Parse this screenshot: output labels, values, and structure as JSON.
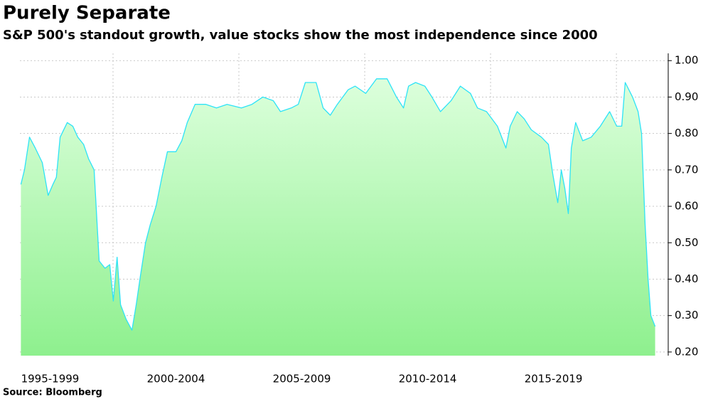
{
  "chart_data": {
    "type": "area",
    "title": "Purely Separate",
    "subtitle": "S&P 500's standout growth, value stocks show the most independence since 2000",
    "source": "Source: Bloomberg",
    "color": "#2de3f7",
    "grid": true,
    "x": [
      1996.34,
      1996.48,
      1996.68,
      1996.91,
      1997.19,
      1997.42,
      1997.61,
      1997.75,
      1997.9,
      1998.18,
      1998.4,
      1998.6,
      1998.83,
      1999.03,
      1999.25,
      1999.45,
      1999.68,
      1999.87,
      2000.01,
      2000.16,
      2000.3,
      2000.52,
      2000.75,
      2000.92,
      2001.09,
      2001.29,
      2001.48,
      2001.71,
      2001.94,
      2002.16,
      2002.5,
      2002.73,
      2002.95,
      2003.26,
      2003.69,
      2004.11,
      2004.53,
      2005.1,
      2005.52,
      2005.95,
      2006.37,
      2006.65,
      2007.08,
      2007.36,
      2007.64,
      2008.07,
      2008.35,
      2008.63,
      2008.91,
      2009.34,
      2009.62,
      2010.04,
      2010.47,
      2010.89,
      2011.26,
      2011.54,
      2011.74,
      2012.02,
      2012.39,
      2012.67,
      2013.01,
      2013.43,
      2013.8,
      2014.2,
      2014.48,
      2014.84,
      2015.27,
      2015.61,
      2015.78,
      2016.06,
      2016.34,
      2016.62,
      2017.02,
      2017.3,
      2017.47,
      2017.67,
      2017.81,
      2017.95,
      2018.09,
      2018.21,
      2018.38,
      2018.66,
      2019.0,
      2019.36,
      2019.73,
      2020.01,
      2020.21,
      2020.35,
      2020.64,
      2020.86,
      2021.0,
      2021.14,
      2021.26,
      2021.37,
      2021.54
    ],
    "values": [
      0.66,
      0.7,
      0.79,
      0.76,
      0.72,
      0.63,
      0.66,
      0.68,
      0.79,
      0.83,
      0.82,
      0.79,
      0.77,
      0.73,
      0.7,
      0.45,
      0.43,
      0.44,
      0.34,
      0.46,
      0.33,
      0.29,
      0.26,
      0.33,
      0.41,
      0.5,
      0.55,
      0.6,
      0.68,
      0.75,
      0.75,
      0.78,
      0.83,
      0.88,
      0.88,
      0.87,
      0.88,
      0.87,
      0.88,
      0.9,
      0.89,
      0.86,
      0.87,
      0.88,
      0.94,
      0.94,
      0.87,
      0.85,
      0.88,
      0.92,
      0.93,
      0.91,
      0.95,
      0.95,
      0.9,
      0.87,
      0.93,
      0.94,
      0.93,
      0.9,
      0.86,
      0.89,
      0.93,
      0.91,
      0.87,
      0.86,
      0.82,
      0.76,
      0.82,
      0.86,
      0.84,
      0.81,
      0.79,
      0.77,
      0.69,
      0.61,
      0.7,
      0.65,
      0.58,
      0.76,
      0.83,
      0.78,
      0.79,
      0.82,
      0.86,
      0.82,
      0.82,
      0.94,
      0.9,
      0.86,
      0.8,
      0.55,
      0.4,
      0.3,
      0.27
    ],
    "xlim": [
      1996.3,
      2021.55
    ],
    "xticks": [
      {
        "value": 1997.5,
        "label": "1995-1999"
      },
      {
        "value": 2002.5,
        "label": "2000-2004"
      },
      {
        "value": 2007.5,
        "label": "2005-2009"
      },
      {
        "value": 2012.5,
        "label": "2010-2014"
      },
      {
        "value": 2017.5,
        "label": "2015-2019"
      }
    ],
    "ylim": [
      0.19,
      1.02
    ],
    "yticks": [
      {
        "value": 0.2,
        "label": "0.20"
      },
      {
        "value": 0.3,
        "label": "0.30"
      },
      {
        "value": 0.4,
        "label": "0.40"
      },
      {
        "value": 0.5,
        "label": "0.50"
      },
      {
        "value": 0.6,
        "label": "0.60"
      },
      {
        "value": 0.7,
        "label": "0.70"
      },
      {
        "value": 0.8,
        "label": "0.80"
      },
      {
        "value": 0.9,
        "label": "0.90"
      },
      {
        "value": 1.0,
        "label": "1.00"
      }
    ]
  }
}
